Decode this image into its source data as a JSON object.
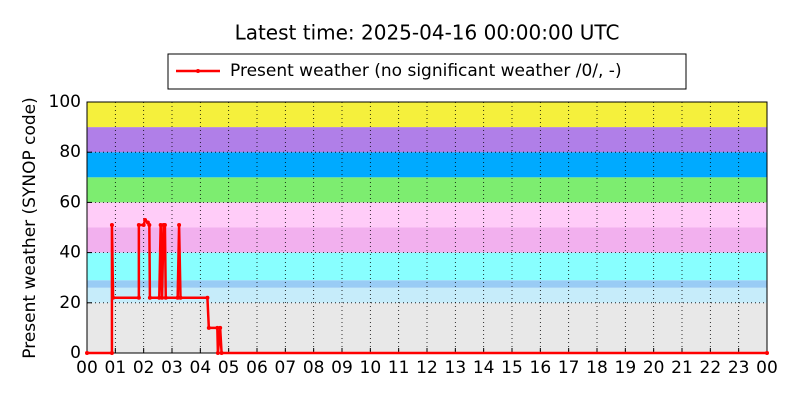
{
  "chart_data": {
    "type": "line",
    "title": "Latest time: 2025-04-16 00:00:00 UTC",
    "y_label": "Present weather (SYNOP code)",
    "series": [
      {
        "name": "Present weather (no significant weather /0/, -)",
        "color": "#ff0000",
        "x": [
          0,
          0.88,
          0.88,
          0.92,
          1.83,
          1.83,
          2.0,
          2.05,
          2.15,
          2.2,
          2.22,
          2.55,
          2.6,
          2.65,
          2.7,
          2.75,
          2.78,
          3.2,
          3.25,
          3.3,
          4.25,
          4.3,
          4.6,
          4.62,
          4.7,
          4.75,
          24
        ],
        "values": [
          0,
          0,
          51,
          22,
          22,
          51,
          51,
          53,
          52,
          51,
          22,
          22,
          51,
          22,
          51,
          51,
          22,
          22,
          51,
          22,
          22,
          10,
          10,
          0,
          10,
          0,
          0
        ]
      }
    ],
    "bands": [
      {
        "from": 0,
        "to": 20,
        "color": "#e8e8e8"
      },
      {
        "from": 20,
        "to": 26,
        "color": "#c6ecfa"
      },
      {
        "from": 26,
        "to": 29,
        "color": "#99ccf5"
      },
      {
        "from": 29,
        "to": 40,
        "color": "#88ffff"
      },
      {
        "from": 40,
        "to": 50,
        "color": "#f2b0ee"
      },
      {
        "from": 50,
        "to": 60,
        "color": "#ffccf8"
      },
      {
        "from": 60,
        "to": 70,
        "color": "#7ded70"
      },
      {
        "from": 70,
        "to": 80,
        "color": "#00aaff"
      },
      {
        "from": 80,
        "to": 90,
        "color": "#b07fe8"
      },
      {
        "from": 90,
        "to": 100,
        "color": "#f5f03c"
      }
    ],
    "xlim": [
      0,
      24
    ],
    "xticks": [
      {
        "value": 0,
        "label": "00"
      },
      {
        "value": 1,
        "label": "01"
      },
      {
        "value": 2,
        "label": "02"
      },
      {
        "value": 3,
        "label": "03"
      },
      {
        "value": 4,
        "label": "04"
      },
      {
        "value": 5,
        "label": "05"
      },
      {
        "value": 6,
        "label": "06"
      },
      {
        "value": 7,
        "label": "07"
      },
      {
        "value": 8,
        "label": "08"
      },
      {
        "value": 9,
        "label": "09"
      },
      10,
      11,
      12,
      13,
      14,
      15,
      16,
      17,
      18,
      19,
      20,
      21,
      22,
      23,
      {
        "value": 24,
        "label": "00"
      }
    ],
    "ylim": [
      0,
      100
    ],
    "yticks": [
      0,
      20,
      40,
      60,
      80,
      100
    ],
    "grid": true,
    "legend": "top"
  }
}
